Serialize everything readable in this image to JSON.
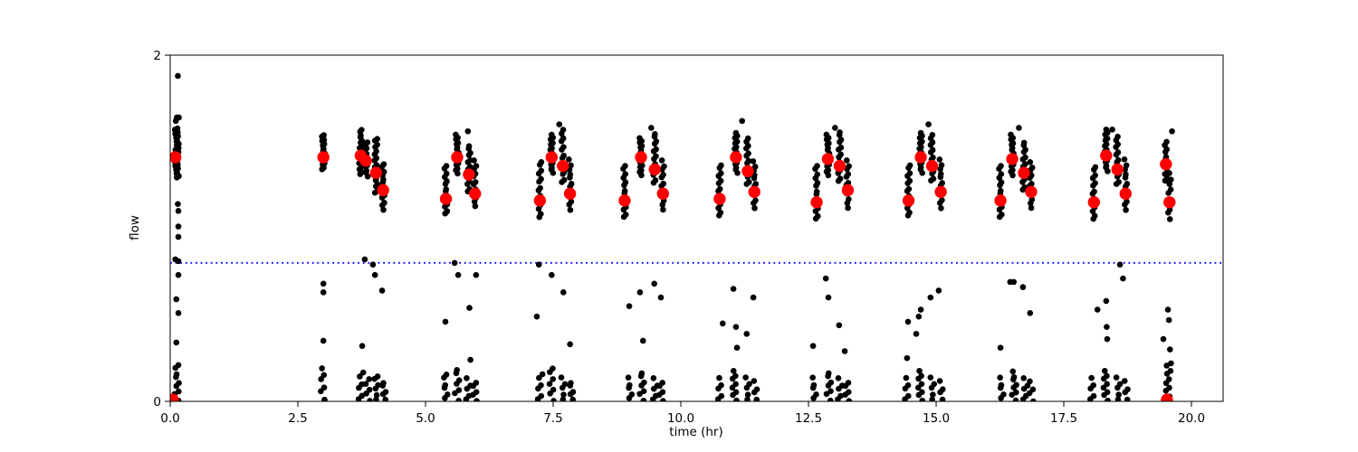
{
  "chart_data": {
    "type": "scatter",
    "title": "",
    "xlabel": "time (hr)",
    "ylabel": "flow",
    "xlim": [
      0,
      20.62
    ],
    "ylim": [
      0,
      2
    ],
    "grid": false,
    "legend": "none",
    "xticks": {
      "values": [
        0,
        2.5,
        5,
        7.5,
        10,
        12.5,
        15,
        17.5,
        20
      ],
      "labels": [
        "0.0",
        "2.5",
        "5.0",
        "7.5",
        "10.0",
        "12.5",
        "15.0",
        "17.5",
        "20.0"
      ]
    },
    "yticks": {
      "values": [
        0,
        2
      ],
      "labels": [
        "0",
        "2"
      ]
    },
    "threshold_line": {
      "y": 0.8,
      "color": "#0000ff",
      "style": "dotted"
    },
    "markers": {
      "black": {
        "color": "#000000",
        "radius": 3.3
      },
      "red": {
        "color": "#ff0000",
        "radius": 6.7
      }
    },
    "black_streaks": [
      {
        "x": 0.13,
        "y0": 1.29,
        "y1": 1.58,
        "n": 26
      },
      {
        "x": 0.12,
        "y0": 0.01,
        "y1": 0.19,
        "n": 8
      },
      {
        "x": 3.0,
        "y0": 1.34,
        "y1": 1.54,
        "n": 16
      },
      {
        "x": 3.0,
        "y0": 0.02,
        "y1": 0.19,
        "n": 6
      },
      {
        "x": 3.73,
        "y0": 1.31,
        "y1": 1.57,
        "n": 18
      },
      {
        "x": 3.84,
        "y0": 1.3,
        "y1": 1.5,
        "n": 13
      },
      {
        "x": 4.03,
        "y0": 1.2,
        "y1": 1.52,
        "n": 18
      },
      {
        "x": 4.17,
        "y0": 1.11,
        "y1": 1.37,
        "n": 13
      },
      {
        "x": 3.74,
        "y0": 0.01,
        "y1": 0.17,
        "n": 6
      },
      {
        "x": 3.88,
        "y0": 0.01,
        "y1": 0.13,
        "n": 5
      },
      {
        "x": 4.04,
        "y0": 0.01,
        "y1": 0.15,
        "n": 6
      },
      {
        "x": 4.17,
        "y0": 0.01,
        "y1": 0.11,
        "n": 5
      },
      {
        "x": 5.4,
        "y0": 1.08,
        "y1": 1.36,
        "n": 14
      },
      {
        "x": 5.62,
        "y0": 1.32,
        "y1": 1.54,
        "n": 16
      },
      {
        "x": 5.85,
        "y0": 1.21,
        "y1": 1.48,
        "n": 14
      },
      {
        "x": 5.97,
        "y0": 1.13,
        "y1": 1.39,
        "n": 12
      },
      {
        "x": 5.38,
        "y0": 0.01,
        "y1": 0.16,
        "n": 6
      },
      {
        "x": 5.61,
        "y0": 0.01,
        "y1": 0.19,
        "n": 7
      },
      {
        "x": 5.84,
        "y0": 0.01,
        "y1": 0.13,
        "n": 5
      },
      {
        "x": 5.98,
        "y0": 0.01,
        "y1": 0.11,
        "n": 5
      },
      {
        "x": 7.24,
        "y0": 1.06,
        "y1": 1.39,
        "n": 14
      },
      {
        "x": 7.47,
        "y0": 1.32,
        "y1": 1.54,
        "n": 16
      },
      {
        "x": 7.69,
        "y0": 1.26,
        "y1": 1.57,
        "n": 14
      },
      {
        "x": 7.83,
        "y0": 1.11,
        "y1": 1.39,
        "n": 12
      },
      {
        "x": 7.25,
        "y0": 0.01,
        "y1": 0.16,
        "n": 6
      },
      {
        "x": 7.48,
        "y0": 0.01,
        "y1": 0.19,
        "n": 7
      },
      {
        "x": 7.7,
        "y0": 0.01,
        "y1": 0.13,
        "n": 5
      },
      {
        "x": 7.84,
        "y0": 0.01,
        "y1": 0.11,
        "n": 5
      },
      {
        "x": 8.9,
        "y0": 1.06,
        "y1": 1.36,
        "n": 14
      },
      {
        "x": 9.22,
        "y0": 1.31,
        "y1": 1.52,
        "n": 16
      },
      {
        "x": 9.49,
        "y0": 1.26,
        "y1": 1.55,
        "n": 14
      },
      {
        "x": 9.65,
        "y0": 1.11,
        "y1": 1.39,
        "n": 12
      },
      {
        "x": 8.99,
        "y0": 0.01,
        "y1": 0.13,
        "n": 5
      },
      {
        "x": 9.23,
        "y0": 0.01,
        "y1": 0.17,
        "n": 7
      },
      {
        "x": 9.5,
        "y0": 0.01,
        "y1": 0.13,
        "n": 5
      },
      {
        "x": 9.63,
        "y0": 0.01,
        "y1": 0.11,
        "n": 5
      },
      {
        "x": 10.76,
        "y0": 1.07,
        "y1": 1.37,
        "n": 14
      },
      {
        "x": 11.08,
        "y0": 1.32,
        "y1": 1.55,
        "n": 16
      },
      {
        "x": 11.31,
        "y0": 1.25,
        "y1": 1.52,
        "n": 14
      },
      {
        "x": 11.44,
        "y0": 1.12,
        "y1": 1.38,
        "n": 12
      },
      {
        "x": 10.78,
        "y0": 0.01,
        "y1": 0.13,
        "n": 5
      },
      {
        "x": 11.06,
        "y0": 0.01,
        "y1": 0.17,
        "n": 8
      },
      {
        "x": 11.31,
        "y0": 0.01,
        "y1": 0.13,
        "n": 5
      },
      {
        "x": 11.44,
        "y0": 0.01,
        "y1": 0.11,
        "n": 4
      },
      {
        "x": 12.66,
        "y0": 1.05,
        "y1": 1.36,
        "n": 14
      },
      {
        "x": 12.88,
        "y0": 1.31,
        "y1": 1.54,
        "n": 16
      },
      {
        "x": 13.11,
        "y0": 1.27,
        "y1": 1.56,
        "n": 14
      },
      {
        "x": 13.27,
        "y0": 1.12,
        "y1": 1.39,
        "n": 12
      },
      {
        "x": 12.6,
        "y0": 0.01,
        "y1": 0.13,
        "n": 5
      },
      {
        "x": 12.89,
        "y0": 0.01,
        "y1": 0.17,
        "n": 7
      },
      {
        "x": 13.12,
        "y0": 0.01,
        "y1": 0.13,
        "n": 5
      },
      {
        "x": 13.27,
        "y0": 0.01,
        "y1": 0.11,
        "n": 5
      },
      {
        "x": 14.46,
        "y0": 1.07,
        "y1": 1.37,
        "n": 14
      },
      {
        "x": 14.7,
        "y0": 1.32,
        "y1": 1.55,
        "n": 16
      },
      {
        "x": 14.92,
        "y0": 1.27,
        "y1": 1.54,
        "n": 14
      },
      {
        "x": 15.09,
        "y0": 1.12,
        "y1": 1.39,
        "n": 12
      },
      {
        "x": 14.44,
        "y0": 0.01,
        "y1": 0.13,
        "n": 5
      },
      {
        "x": 14.7,
        "y0": 0.01,
        "y1": 0.17,
        "n": 8
      },
      {
        "x": 14.93,
        "y0": 0.01,
        "y1": 0.13,
        "n": 5
      },
      {
        "x": 15.08,
        "y0": 0.01,
        "y1": 0.11,
        "n": 4
      },
      {
        "x": 16.26,
        "y0": 1.06,
        "y1": 1.36,
        "n": 14
      },
      {
        "x": 16.49,
        "y0": 1.31,
        "y1": 1.54,
        "n": 16
      },
      {
        "x": 16.72,
        "y0": 1.22,
        "y1": 1.5,
        "n": 14
      },
      {
        "x": 16.86,
        "y0": 1.12,
        "y1": 1.38,
        "n": 12
      },
      {
        "x": 16.27,
        "y0": 0.01,
        "y1": 0.13,
        "n": 5
      },
      {
        "x": 16.52,
        "y0": 0.01,
        "y1": 0.17,
        "n": 8
      },
      {
        "x": 16.75,
        "y0": 0.01,
        "y1": 0.13,
        "n": 5
      },
      {
        "x": 16.88,
        "y0": 0.01,
        "y1": 0.11,
        "n": 4
      },
      {
        "x": 18.09,
        "y0": 1.05,
        "y1": 1.36,
        "n": 14
      },
      {
        "x": 18.33,
        "y0": 1.33,
        "y1": 1.57,
        "n": 16
      },
      {
        "x": 18.55,
        "y0": 1.25,
        "y1": 1.53,
        "n": 14
      },
      {
        "x": 18.71,
        "y0": 1.11,
        "y1": 1.39,
        "n": 12
      },
      {
        "x": 18.07,
        "y0": 0.01,
        "y1": 0.13,
        "n": 5
      },
      {
        "x": 18.33,
        "y0": 0.01,
        "y1": 0.17,
        "n": 8
      },
      {
        "x": 18.57,
        "y0": 0.01,
        "y1": 0.13,
        "n": 5
      },
      {
        "x": 18.7,
        "y0": 0.01,
        "y1": 0.11,
        "n": 4
      },
      {
        "x": 19.5,
        "y0": 1.27,
        "y1": 1.5,
        "n": 12
      },
      {
        "x": 19.57,
        "y0": 1.06,
        "y1": 1.31,
        "n": 10
      },
      {
        "x": 19.55,
        "y0": 0.01,
        "y1": 0.2,
        "n": 9
      }
    ],
    "black_points": [
      [
        0.15,
        1.88
      ],
      [
        0.13,
        1.64
      ],
      [
        0.17,
        1.64
      ],
      [
        0.11,
        1.62
      ],
      [
        0.15,
        1.14
      ],
      [
        0.16,
        1.1
      ],
      [
        0.16,
        1.01
      ],
      [
        0.16,
        0.95
      ],
      [
        0.1,
        0.82
      ],
      [
        0.16,
        0.81
      ],
      [
        0.16,
        0.73
      ],
      [
        0.12,
        0.59
      ],
      [
        0.16,
        0.51
      ],
      [
        0.12,
        0.34
      ],
      [
        0.16,
        0.21
      ],
      [
        3.0,
        0.68
      ],
      [
        3.0,
        0.63
      ],
      [
        3.0,
        0.35
      ],
      [
        3.81,
        0.82
      ],
      [
        3.97,
        0.79
      ],
      [
        4.01,
        0.73
      ],
      [
        4.15,
        0.64
      ],
      [
        3.76,
        0.32
      ],
      [
        5.83,
        1.56
      ],
      [
        5.57,
        0.8
      ],
      [
        5.64,
        0.73
      ],
      [
        5.99,
        0.73
      ],
      [
        5.86,
        0.54
      ],
      [
        5.39,
        0.46
      ],
      [
        5.88,
        0.24
      ],
      [
        7.62,
        1.6
      ],
      [
        7.22,
        0.79
      ],
      [
        7.47,
        0.73
      ],
      [
        7.7,
        0.63
      ],
      [
        7.18,
        0.49
      ],
      [
        7.83,
        0.33
      ],
      [
        9.42,
        1.58
      ],
      [
        8.99,
        0.55
      ],
      [
        9.2,
        0.63
      ],
      [
        9.48,
        0.68
      ],
      [
        9.61,
        0.6
      ],
      [
        9.26,
        0.35
      ],
      [
        11.2,
        1.62
      ],
      [
        11.03,
        0.65
      ],
      [
        11.42,
        0.6
      ],
      [
        10.82,
        0.45
      ],
      [
        11.08,
        0.43
      ],
      [
        11.29,
        0.39
      ],
      [
        11.1,
        0.31
      ],
      [
        13.02,
        1.58
      ],
      [
        12.84,
        0.71
      ],
      [
        12.89,
        0.6
      ],
      [
        13.1,
        0.44
      ],
      [
        12.59,
        0.32
      ],
      [
        13.21,
        0.29
      ],
      [
        14.85,
        1.6
      ],
      [
        14.43,
        0.25
      ],
      [
        14.45,
        0.46
      ],
      [
        14.61,
        0.39
      ],
      [
        14.66,
        0.49
      ],
      [
        14.7,
        0.53
      ],
      [
        14.89,
        0.6
      ],
      [
        15.05,
        0.64
      ],
      [
        16.62,
        1.58
      ],
      [
        16.26,
        0.31
      ],
      [
        16.45,
        0.69
      ],
      [
        16.52,
        0.69
      ],
      [
        16.7,
        0.66
      ],
      [
        16.84,
        0.51
      ],
      [
        18.45,
        1.57
      ],
      [
        18.16,
        0.53
      ],
      [
        18.33,
        0.58
      ],
      [
        18.34,
        0.43
      ],
      [
        18.35,
        0.36
      ],
      [
        18.6,
        0.79
      ],
      [
        18.66,
        0.71
      ],
      [
        19.62,
        1.56
      ],
      [
        19.54,
        0.53
      ],
      [
        19.56,
        0.47
      ],
      [
        19.45,
        0.36
      ],
      [
        19.58,
        0.3
      ],
      [
        19.6,
        0.22
      ]
    ],
    "red_points": [
      [
        0.05,
        0.01
      ],
      [
        0.1,
        1.41
      ],
      [
        3.0,
        1.41
      ],
      [
        3.73,
        1.42
      ],
      [
        3.83,
        1.39
      ],
      [
        4.03,
        1.32
      ],
      [
        4.17,
        1.22
      ],
      [
        5.4,
        1.17
      ],
      [
        5.62,
        1.41
      ],
      [
        5.85,
        1.31
      ],
      [
        5.97,
        1.2
      ],
      [
        7.24,
        1.16
      ],
      [
        7.47,
        1.41
      ],
      [
        7.69,
        1.36
      ],
      [
        7.83,
        1.2
      ],
      [
        8.9,
        1.16
      ],
      [
        9.22,
        1.41
      ],
      [
        9.49,
        1.34
      ],
      [
        9.65,
        1.2
      ],
      [
        10.76,
        1.17
      ],
      [
        11.08,
        1.41
      ],
      [
        11.31,
        1.33
      ],
      [
        11.44,
        1.21
      ],
      [
        12.66,
        1.15
      ],
      [
        12.88,
        1.4
      ],
      [
        13.11,
        1.36
      ],
      [
        13.27,
        1.22
      ],
      [
        14.46,
        1.16
      ],
      [
        14.7,
        1.41
      ],
      [
        14.92,
        1.36
      ],
      [
        15.09,
        1.21
      ],
      [
        16.26,
        1.16
      ],
      [
        16.49,
        1.4
      ],
      [
        16.72,
        1.32
      ],
      [
        16.86,
        1.21
      ],
      [
        18.09,
        1.15
      ],
      [
        18.33,
        1.42
      ],
      [
        18.55,
        1.34
      ],
      [
        18.71,
        1.2
      ],
      [
        19.5,
        1.37
      ],
      [
        19.57,
        1.15
      ],
      [
        19.52,
        0.01
      ]
    ]
  }
}
